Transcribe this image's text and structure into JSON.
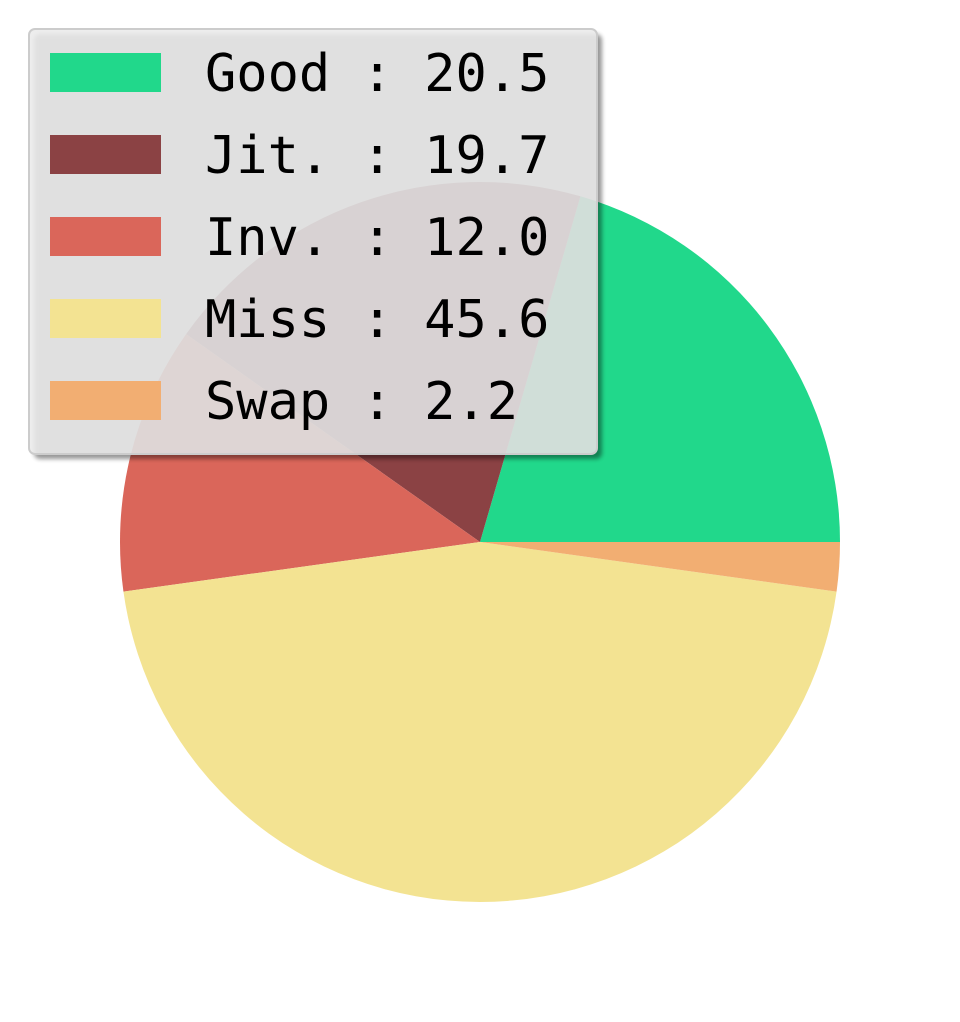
{
  "chart_data": {
    "type": "pie",
    "start_angle_deg": 0,
    "direction": "counterclockwise",
    "legend_placement": "top-left",
    "slices": [
      {
        "label": "Good",
        "value": 20.5,
        "legend_text": "Good : 20.5",
        "color": "#21d88b"
      },
      {
        "label": "Jit.",
        "value": 19.7,
        "legend_text": "Jit. : 19.7",
        "color": "#8b4244"
      },
      {
        "label": "Inv.",
        "value": 12.0,
        "legend_text": "Inv. : 12.0",
        "color": "#da665a"
      },
      {
        "label": "Miss",
        "value": 45.6,
        "legend_text": "Miss : 45.6",
        "color": "#f3e392"
      },
      {
        "label": "Swap",
        "value": 2.2,
        "legend_text": "Swap : 2.2",
        "color": "#f2ae72"
      }
    ]
  }
}
